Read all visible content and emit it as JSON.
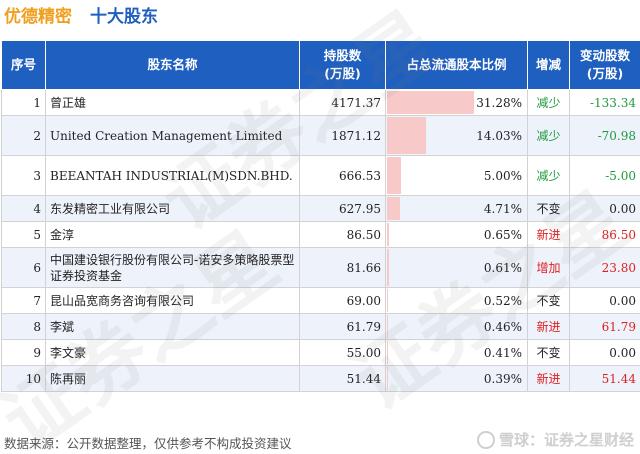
{
  "header": {
    "company": "优德精密",
    "section": "十大股东"
  },
  "table": {
    "columns": {
      "rank": "序号",
      "name": "股东名称",
      "shares_line1": "持股数",
      "shares_line2": "(万股)",
      "ratio": "占总流通股本比例",
      "change": "增减",
      "delta_line1": "变动股数",
      "delta_line2": "(万股)"
    },
    "rows": [
      {
        "rank": "1",
        "name": "曾正雄",
        "shares": "4171.37",
        "ratio": "31.28%",
        "ratio_value": 31.28,
        "change": "减少",
        "delta": "-133.34",
        "kind": "down",
        "latin": false
      },
      {
        "rank": "2",
        "name": "United Creation Management Limited",
        "shares": "1871.12",
        "ratio": "14.03%",
        "ratio_value": 14.03,
        "change": "减少",
        "delta": "-70.98",
        "kind": "down",
        "latin": true
      },
      {
        "rank": "3",
        "name": "BEEANTAH INDUSTRIAL(M)SDN.BHD.",
        "shares": "666.53",
        "ratio": "5.00%",
        "ratio_value": 5.0,
        "change": "减少",
        "delta": "-5.00",
        "kind": "down",
        "latin": true
      },
      {
        "rank": "4",
        "name": "东发精密工业有限公司",
        "shares": "627.95",
        "ratio": "4.71%",
        "ratio_value": 4.71,
        "change": "不变",
        "delta": "0.00",
        "kind": "same",
        "latin": false
      },
      {
        "rank": "5",
        "name": "金淳",
        "shares": "86.50",
        "ratio": "0.65%",
        "ratio_value": 0.65,
        "change": "新进",
        "delta": "86.50",
        "kind": "up",
        "latin": false
      },
      {
        "rank": "6",
        "name": "中国建设银行股份有限公司-诺安多策略股票型证券投资基金",
        "shares": "81.66",
        "ratio": "0.61%",
        "ratio_value": 0.61,
        "change": "增加",
        "delta": "23.80",
        "kind": "up",
        "latin": false
      },
      {
        "rank": "7",
        "name": "昆山品宽商务咨询有限公司",
        "shares": "69.00",
        "ratio": "0.52%",
        "ratio_value": 0.52,
        "change": "不变",
        "delta": "0.00",
        "kind": "same",
        "latin": false
      },
      {
        "rank": "8",
        "name": "李斌",
        "shares": "61.79",
        "ratio": "0.46%",
        "ratio_value": 0.46,
        "change": "新进",
        "delta": "61.79",
        "kind": "up",
        "latin": false
      },
      {
        "rank": "9",
        "name": "李文豪",
        "shares": "55.00",
        "ratio": "0.41%",
        "ratio_value": 0.41,
        "change": "不变",
        "delta": "0.00",
        "kind": "same",
        "latin": false
      },
      {
        "rank": "10",
        "name": "陈再丽",
        "shares": "51.44",
        "ratio": "0.39%",
        "ratio_value": 0.39,
        "change": "新进",
        "delta": "51.44",
        "kind": "up",
        "latin": false
      }
    ]
  },
  "footer": {
    "source": "数据来源：公开数据整理，仅供参考不构成投资建议",
    "brand": "雪球：证券之星财经"
  },
  "watermark_text": "证券之星",
  "colors": {
    "header_bg": "#1f5fbf",
    "company": "#f0a020",
    "section": "#1e5fbf",
    "bar": "#f7c9c9",
    "down": "#1e9b3c",
    "up": "#e02020"
  },
  "icons": {
    "brand_logo": "snowball-logo-icon"
  }
}
